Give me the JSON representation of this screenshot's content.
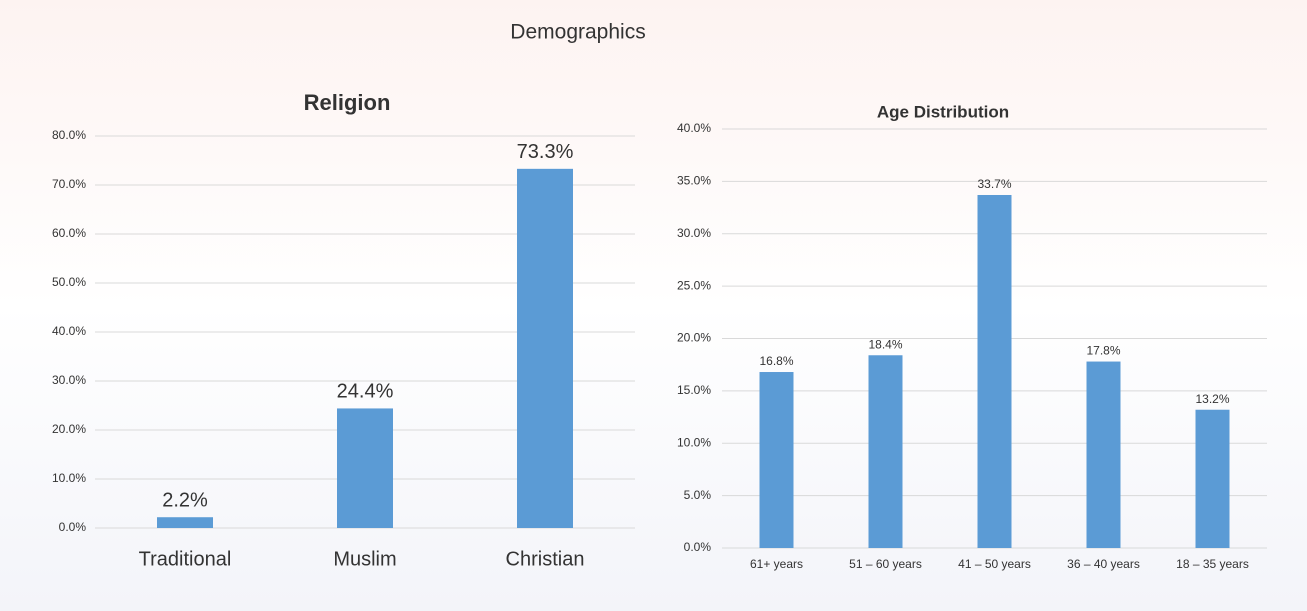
{
  "title": "Demographics",
  "chart_data": [
    {
      "type": "bar",
      "title": "Religion",
      "categories": [
        "Traditional",
        "Muslim",
        "Christian"
      ],
      "values": [
        2.2,
        24.4,
        73.3
      ],
      "value_labels": [
        "2.2%",
        "24.4%",
        "73.3%"
      ],
      "color": "#5b9bd5",
      "ylim": [
        0,
        80
      ],
      "yticks": [
        {
          "value": 0,
          "label": "0.0%"
        },
        {
          "value": 10,
          "label": "10.0%"
        },
        {
          "value": 20,
          "label": "20.0%"
        },
        {
          "value": 30,
          "label": "30.0%"
        },
        {
          "value": 40,
          "label": "40.0%"
        },
        {
          "value": 50,
          "label": "50.0%"
        },
        {
          "value": 60,
          "label": "60.0%"
        },
        {
          "value": 70,
          "label": "70.0%"
        },
        {
          "value": 80,
          "label": "80.0%"
        }
      ],
      "grid": true
    },
    {
      "type": "bar",
      "title": "Age Distribution",
      "categories": [
        "61+ years",
        "51 – 60 years",
        "41 – 50 years",
        "36 – 40 years",
        "18 – 35 years"
      ],
      "values": [
        16.8,
        18.4,
        33.7,
        17.8,
        13.2
      ],
      "value_labels": [
        "16.8%",
        "18.4%",
        "33.7%",
        "17.8%",
        "13.2%"
      ],
      "color": "#5b9bd5",
      "ylim": [
        0,
        40
      ],
      "yticks": [
        {
          "value": 0,
          "label": "0.0%"
        },
        {
          "value": 5,
          "label": "5.0%"
        },
        {
          "value": 10,
          "label": "10.0%"
        },
        {
          "value": 15,
          "label": "15.0%"
        },
        {
          "value": 20,
          "label": "20.0%"
        },
        {
          "value": 25,
          "label": "25.0%"
        },
        {
          "value": 30,
          "label": "30.0%"
        },
        {
          "value": 35,
          "label": "35.0%"
        },
        {
          "value": 40,
          "label": "40.0%"
        }
      ],
      "grid": true
    }
  ]
}
